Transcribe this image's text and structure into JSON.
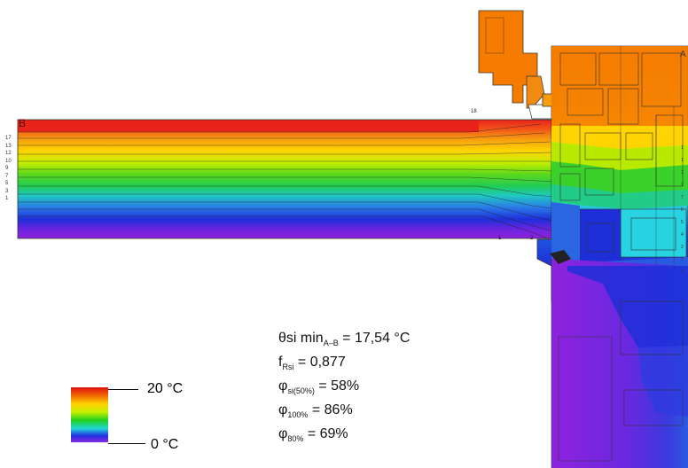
{
  "labels": {
    "point_b": "B",
    "point_a": "A"
  },
  "legend": {
    "max_label": "20 °C",
    "min_label": "0 °C",
    "gradient_colors": [
      "#e01010",
      "#f06a00",
      "#ffd000",
      "#c6f000",
      "#20d020",
      "#20d6d6",
      "#2030e0",
      "#8a2be2"
    ]
  },
  "results": {
    "theta_symbol": "θ",
    "theta_name": "si min",
    "theta_sub": "A–B",
    "theta_value": " = 17,54 °C",
    "f_symbol": "f",
    "f_sub": "Rsi",
    "f_value": " = 0,877",
    "phi_symbol": "φ",
    "phi_si_sub": "si(50%)",
    "phi_si_value": " = 58%",
    "phi_100_sub": "100%",
    "phi_100_value": " = 86%",
    "phi_80_sub": "80%",
    "phi_80_value": " = 69%"
  },
  "isotherm_numbers": {
    "left": [
      "17",
      "13",
      "12",
      "10",
      "9",
      "7",
      "5",
      "3",
      "1"
    ],
    "right": [
      "1",
      "1",
      "1",
      "1",
      "7",
      "6",
      "5",
      "4",
      "2",
      "2",
      "1"
    ],
    "bottom": [
      "1",
      "2"
    ],
    "top": [
      "18"
    ]
  },
  "colors": {
    "red": "#e8231a",
    "orange": "#f57c00",
    "yellow": "#ffd400",
    "yellow_green": "#b8ea00",
    "green": "#22cc22",
    "cyan": "#27d3e0",
    "blue": "#1e2fd8",
    "violet": "#8e22dd"
  }
}
